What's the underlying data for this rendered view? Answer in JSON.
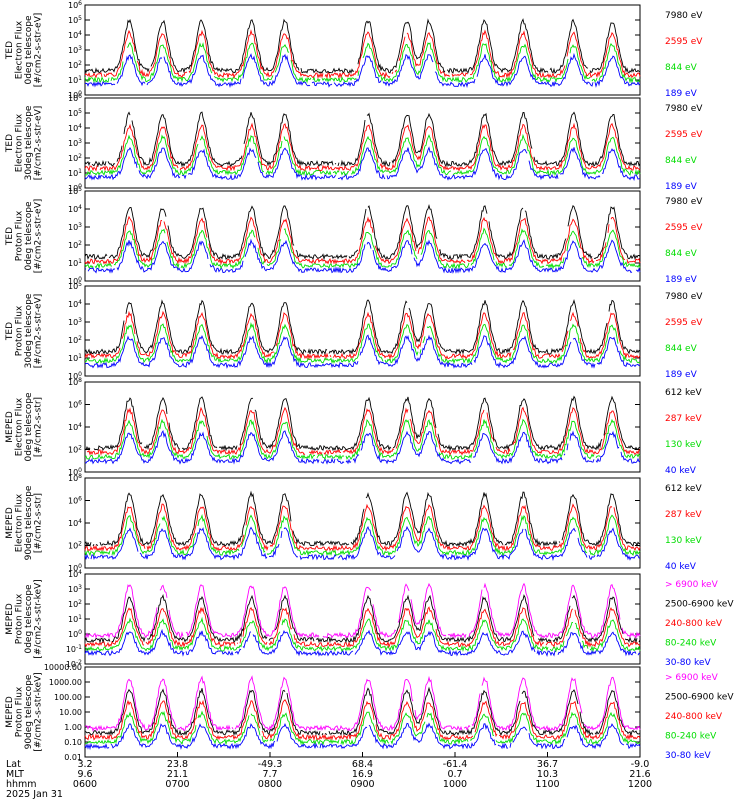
{
  "chart_data": [
    {
      "type": "line",
      "ylabel": "TED\nElectron Flux\n0deg telescope\n[#/cm2-s-str-eV]",
      "yticks": [
        "10^6",
        "10^5",
        "10^4",
        "10^3",
        "10^2",
        "10^1",
        "10^0"
      ],
      "ylim": [
        0,
        6
      ],
      "log": true,
      "series": [
        {
          "name": "7980 eV",
          "color": "#000000"
        },
        {
          "name": "2595 eV",
          "color": "#ff0000"
        },
        {
          "name": "844 eV",
          "color": "#00dd00"
        },
        {
          "name": "189 eV",
          "color": "#0000ff"
        }
      ]
    },
    {
      "type": "line",
      "ylabel": "TED\nElectron Flux\n30deg telescope\n[#/cm2-s-str-eV]",
      "yticks": [
        "10^6",
        "10^5",
        "10^4",
        "10^3",
        "10^2",
        "10^1",
        "10^0"
      ],
      "ylim": [
        0,
        6
      ],
      "log": true,
      "series": [
        {
          "name": "7980 eV",
          "color": "#000000"
        },
        {
          "name": "2595 eV",
          "color": "#ff0000"
        },
        {
          "name": "844 eV",
          "color": "#00dd00"
        },
        {
          "name": "189 eV",
          "color": "#0000ff"
        }
      ]
    },
    {
      "type": "line",
      "ylabel": "TED\nProton Flux\n0deg telescope\n[#/cm2-s-str-eV]",
      "yticks": [
        "10^5",
        "10^4",
        "10^3",
        "10^2",
        "10^1",
        "10^0"
      ],
      "ylim": [
        0,
        5
      ],
      "log": true,
      "series": [
        {
          "name": "7980 eV",
          "color": "#000000"
        },
        {
          "name": "2595 eV",
          "color": "#ff0000"
        },
        {
          "name": "844 eV",
          "color": "#00dd00"
        },
        {
          "name": "189 eV",
          "color": "#0000ff"
        }
      ]
    },
    {
      "type": "line",
      "ylabel": "TED\nProton Flux\n30deg telescope\n[#/cm2-s-str-eV]",
      "yticks": [
        "10^5",
        "10^4",
        "10^3",
        "10^2",
        "10^1",
        "10^0"
      ],
      "ylim": [
        0,
        5
      ],
      "log": true,
      "series": [
        {
          "name": "7980 eV",
          "color": "#000000"
        },
        {
          "name": "2595 eV",
          "color": "#ff0000"
        },
        {
          "name": "844 eV",
          "color": "#00dd00"
        },
        {
          "name": "189 eV",
          "color": "#0000ff"
        }
      ]
    },
    {
      "type": "line",
      "ylabel": "MEPED\nElectron Flux\n0deg telescope\n[#/cm2-s-str]",
      "yticks": [
        "10^8",
        "10^6",
        "10^4",
        "10^2",
        "10^0"
      ],
      "ylim": [
        0,
        8
      ],
      "log": true,
      "series": [
        {
          "name": "612 keV",
          "color": "#000000"
        },
        {
          "name": "287 keV",
          "color": "#ff0000"
        },
        {
          "name": "130 keV",
          "color": "#00dd00"
        },
        {
          "name": "40 keV",
          "color": "#0000ff"
        }
      ]
    },
    {
      "type": "line",
      "ylabel": "MEPED\nElectron Flux\n90deg telescope\n[#/cm2-s-str]",
      "yticks": [
        "10^8",
        "10^6",
        "10^4",
        "10^2",
        "10^0"
      ],
      "ylim": [
        0,
        8
      ],
      "log": true,
      "series": [
        {
          "name": "612 keV",
          "color": "#000000"
        },
        {
          "name": "287 keV",
          "color": "#ff0000"
        },
        {
          "name": "130 keV",
          "color": "#00dd00"
        },
        {
          "name": "40 keV",
          "color": "#0000ff"
        }
      ]
    },
    {
      "type": "line",
      "ylabel": "MEPED\nProton Flux\n0deg telescope\n[#/cm2-s-str-keV]",
      "yticks": [
        "10^4",
        "10^3",
        "10^2",
        "10^1",
        "10^0",
        "10^-1",
        "10^-2"
      ],
      "ylim": [
        -2,
        4
      ],
      "log": true,
      "series": [
        {
          "name": "> 6900 keV",
          "color": "#ff00ff"
        },
        {
          "name": "2500-6900 keV",
          "color": "#000000"
        },
        {
          "name": "240-800 keV",
          "color": "#ff0000"
        },
        {
          "name": "80-240 keV",
          "color": "#00dd00"
        },
        {
          "name": "30-80 keV",
          "color": "#0000ff"
        }
      ]
    },
    {
      "type": "line",
      "ylabel": "MEPED\nProton Flux\n90deg telescope\n[#/cm2-s-str-keV]",
      "yticks": [
        "10000.00",
        "1000.00",
        "100.00",
        "10.00",
        "1.00",
        "0.10",
        "0.01"
      ],
      "ylim": [
        -2,
        4
      ],
      "log": true,
      "series": [
        {
          "name": "> 6900 keV",
          "color": "#ff00ff"
        },
        {
          "name": "2500-6900 keV",
          "color": "#000000"
        },
        {
          "name": "240-800 keV",
          "color": "#ff0000"
        },
        {
          "name": "80-240 keV",
          "color": "#00dd00"
        },
        {
          "name": "30-80 keV",
          "color": "#0000ff"
        }
      ]
    }
  ],
  "xaxis": {
    "row_labels": [
      "Lat",
      "MLT",
      "hhmm"
    ],
    "date": "2025 Jan 31",
    "ticks": [
      {
        "lat": "3.2",
        "mlt": "9.6",
        "hhmm": "0600"
      },
      {
        "lat": "23.8",
        "mlt": "21.1",
        "hhmm": "0700"
      },
      {
        "lat": "-49.3",
        "mlt": "7.7",
        "hhmm": "0800"
      },
      {
        "lat": "68.4",
        "mlt": "16.9",
        "hhmm": "0900"
      },
      {
        "lat": "-61.4",
        "mlt": "0.7",
        "hhmm": "1000"
      },
      {
        "lat": "36.7",
        "mlt": "10.3",
        "hhmm": "1100"
      },
      {
        "lat": "-9.0",
        "mlt": "21.6",
        "hhmm": "1200"
      }
    ]
  }
}
